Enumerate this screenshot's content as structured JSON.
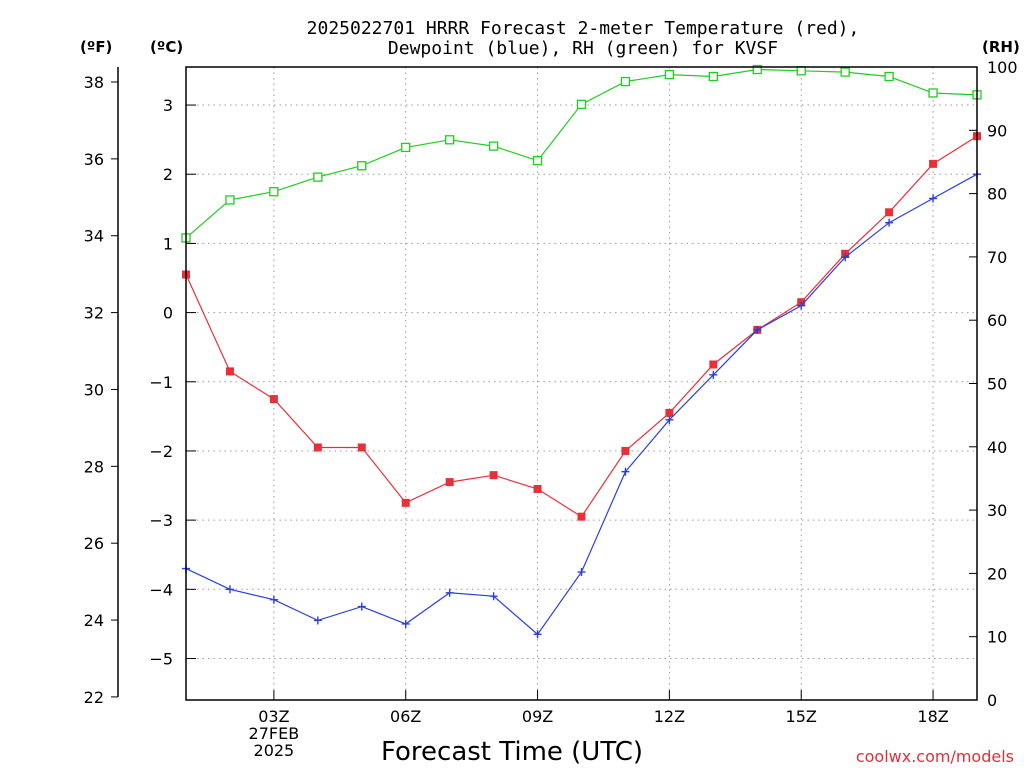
{
  "chart_data": {
    "type": "line",
    "title_lines": [
      "2025022701 HRRR Forecast 2-meter Temperature (red),",
      "Dewpoint (blue), RH (green) for KVSF"
    ],
    "unit_labels": {
      "fahrenheit": "(ºF)",
      "celsius": "(ºC)",
      "rh": "(RH)"
    },
    "xlabel": "Forecast Time (UTC)",
    "credit": "coolwx.com/models",
    "x_range_hours": [
      1,
      19
    ],
    "x_ticks": [
      {
        "hour": 3,
        "lines": [
          "03Z",
          "27FEB",
          "2025"
        ]
      },
      {
        "hour": 6,
        "lines": [
          "06Z"
        ]
      },
      {
        "hour": 9,
        "lines": [
          "09Z"
        ]
      },
      {
        "hour": 12,
        "lines": [
          "12Z"
        ]
      },
      {
        "hour": 15,
        "lines": [
          "15Z"
        ]
      },
      {
        "hour": 18,
        "lines": [
          "18Z"
        ]
      }
    ],
    "y_celsius": {
      "range": [
        -5.6,
        3.55
      ],
      "ticks": [
        -5,
        -4,
        -3,
        -2,
        -1,
        0,
        1,
        2,
        3
      ]
    },
    "y_fahrenheit": {
      "ticks": [
        22,
        24,
        26,
        28,
        30,
        32,
        34,
        36,
        38
      ]
    },
    "y_rh": {
      "range": [
        0,
        100
      ],
      "ticks": [
        0,
        10,
        20,
        30,
        40,
        50,
        60,
        70,
        80,
        90,
        100
      ]
    },
    "grid": true,
    "x": [
      1,
      2,
      3,
      4,
      5,
      6,
      7,
      8,
      9,
      10,
      11,
      12,
      13,
      14,
      15,
      16,
      17,
      18,
      19
    ],
    "series": [
      {
        "name": "Temperature",
        "color": "#e8303a",
        "marker": "filled-square",
        "axis": "celsius",
        "values": [
          0.55,
          -0.85,
          -1.25,
          -1.95,
          -1.95,
          -2.75,
          -2.45,
          -2.35,
          -2.55,
          -2.95,
          -2.0,
          -1.45,
          -0.75,
          -0.25,
          0.15,
          0.85,
          1.45,
          2.15,
          2.55
        ]
      },
      {
        "name": "Dewpoint",
        "color": "#2a3fe0",
        "marker": "plus",
        "axis": "celsius",
        "values": [
          -3.7,
          -4.0,
          -4.15,
          -4.45,
          -4.25,
          -4.5,
          -4.05,
          -4.1,
          -4.65,
          -3.75,
          -2.3,
          -1.55,
          -0.9,
          -0.25,
          0.1,
          0.8,
          1.3,
          1.65,
          2.0
        ]
      },
      {
        "name": "RH",
        "color": "#22cc22",
        "marker": "open-square",
        "axis": "rh",
        "values": [
          73,
          79,
          80.3,
          82.6,
          84.4,
          87.3,
          88.5,
          87.5,
          85.2,
          94.1,
          97.7,
          98.8,
          98.5,
          99.6,
          99.4,
          99.2,
          98.5,
          95.9,
          95.6
        ]
      }
    ]
  }
}
